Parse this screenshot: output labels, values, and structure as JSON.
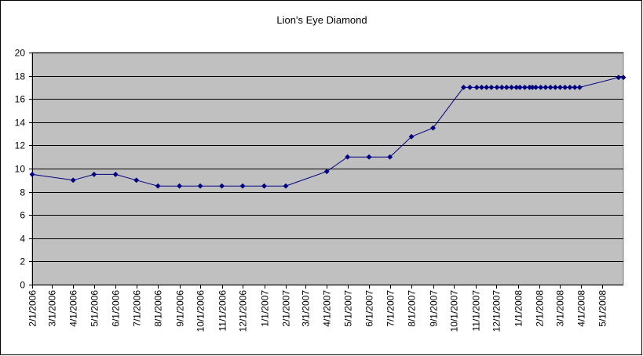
{
  "chart_data": {
    "type": "line",
    "title": "Lion's Eye Diamond",
    "xlabel": "",
    "ylabel": "",
    "ylim": [
      0,
      20
    ],
    "y_ticks": [
      "0",
      "2",
      "4",
      "6",
      "8",
      "10",
      "12",
      "14",
      "16",
      "18",
      "20"
    ],
    "x_range": [
      "2006-02-01",
      "2008-06-01"
    ],
    "x_ticks": [
      {
        "date": "2006-02-01",
        "label": "2/1/2006"
      },
      {
        "date": "2006-03-01",
        "label": "3/1/2006"
      },
      {
        "date": "2006-04-01",
        "label": "4/1/2006"
      },
      {
        "date": "2006-05-01",
        "label": "5/1/2006"
      },
      {
        "date": "2006-06-01",
        "label": "6/1/2006"
      },
      {
        "date": "2006-07-01",
        "label": "7/1/2006"
      },
      {
        "date": "2006-08-01",
        "label": "8/1/2006"
      },
      {
        "date": "2006-09-01",
        "label": "9/1/2006"
      },
      {
        "date": "2006-10-01",
        "label": "10/1/2006"
      },
      {
        "date": "2006-11-01",
        "label": "11/1/2006"
      },
      {
        "date": "2006-12-01",
        "label": "12/1/2006"
      },
      {
        "date": "2007-01-01",
        "label": "1/1/2007"
      },
      {
        "date": "2007-02-01",
        "label": "2/1/2007"
      },
      {
        "date": "2007-03-01",
        "label": "3/1/2007"
      },
      {
        "date": "2007-04-01",
        "label": "4/1/2007"
      },
      {
        "date": "2007-05-01",
        "label": "5/1/2007"
      },
      {
        "date": "2007-06-01",
        "label": "6/1/2007"
      },
      {
        "date": "2007-07-01",
        "label": "7/1/2007"
      },
      {
        "date": "2007-08-01",
        "label": "8/1/2007"
      },
      {
        "date": "2007-09-01",
        "label": "9/1/2007"
      },
      {
        "date": "2007-10-01",
        "label": "10/1/2007"
      },
      {
        "date": "2007-11-01",
        "label": "11/1/2007"
      },
      {
        "date": "2007-12-01",
        "label": "12/1/2007"
      },
      {
        "date": "2008-01-01",
        "label": "1/1/2008"
      },
      {
        "date": "2008-02-01",
        "label": "2/1/2008"
      },
      {
        "date": "2008-03-01",
        "label": "3/1/2008"
      },
      {
        "date": "2008-04-01",
        "label": "4/1/2008"
      },
      {
        "date": "2008-05-01",
        "label": "5/1/2008"
      }
    ],
    "grid": true,
    "legend": "none",
    "colors": {
      "plot_background": "#c0c0c0",
      "line": "#000080",
      "grid": "#000000"
    },
    "series": [
      {
        "x": [
          "2006-02-01",
          "2006-04-01",
          "2006-05-01",
          "2006-06-01",
          "2006-07-01",
          "2006-08-01",
          "2006-09-01",
          "2006-10-01",
          "2006-11-01",
          "2006-12-01",
          "2007-01-01",
          "2007-02-01",
          "2007-04-01",
          "2007-05-01",
          "2007-06-01",
          "2007-07-01",
          "2007-08-01",
          "2007-09-01",
          "2007-10-15",
          "2007-10-24",
          "2007-11-03",
          "2007-11-10",
          "2007-11-17",
          "2007-11-24",
          "2007-12-02",
          "2007-12-09",
          "2007-12-16",
          "2007-12-23",
          "2007-12-30",
          "2008-01-04",
          "2008-01-11",
          "2008-01-18",
          "2008-01-22",
          "2008-01-27",
          "2008-02-03",
          "2008-02-10",
          "2008-02-17",
          "2008-02-24",
          "2008-03-02",
          "2008-03-09",
          "2008-03-16",
          "2008-03-23",
          "2008-03-30",
          "2008-05-25",
          "2008-06-01"
        ],
        "values": [
          9.5,
          9.0,
          9.5,
          9.5,
          9.0,
          8.5,
          8.5,
          8.5,
          8.5,
          8.5,
          8.5,
          8.5,
          9.75,
          11.0,
          11.0,
          11.0,
          12.75,
          13.5,
          17.0,
          17.0,
          17.0,
          17.0,
          17.0,
          17.0,
          17.0,
          17.0,
          17.0,
          17.0,
          17.0,
          17.0,
          17.0,
          17.0,
          17.0,
          17.0,
          17.0,
          17.0,
          17.0,
          17.0,
          17.0,
          17.0,
          17.0,
          17.0,
          17.0,
          17.85,
          17.85
        ]
      }
    ]
  }
}
